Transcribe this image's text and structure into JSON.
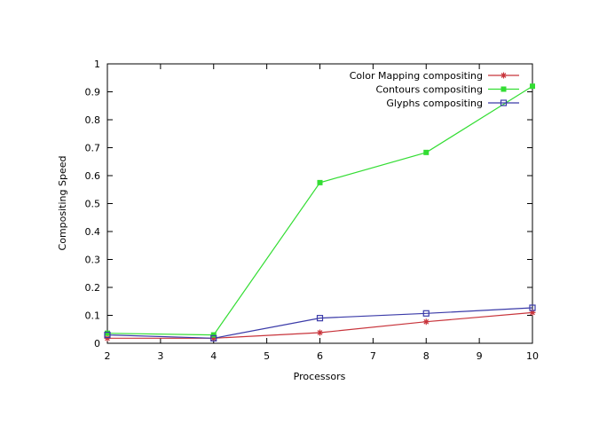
{
  "chart_data": {
    "type": "line",
    "xlabel": "Processors",
    "ylabel": "Compositing Speed",
    "xlim": [
      2,
      10
    ],
    "ylim": [
      0,
      1
    ],
    "x_ticks": [
      "2",
      "3",
      "4",
      "5",
      "6",
      "7",
      "8",
      "9",
      "10"
    ],
    "y_ticks": [
      "0",
      "0.1",
      "0.2",
      "0.3",
      "0.4",
      "0.5",
      "0.6",
      "0.7",
      "0.8",
      "0.9",
      "1"
    ],
    "grid": false,
    "legend_position": "top-right",
    "x": [
      2,
      4,
      6,
      8,
      10
    ],
    "series": [
      {
        "name": "Color Mapping compositing",
        "color": "#c8343b",
        "marker": "asterisk",
        "values": [
          0.018,
          0.018,
          0.038,
          0.077,
          0.11
        ]
      },
      {
        "name": "Contours compositing",
        "color": "#33dd33",
        "marker": "filled-square",
        "values": [
          0.036,
          0.03,
          0.575,
          0.683,
          0.92
        ]
      },
      {
        "name": "Glyphs compositing",
        "color": "#3a3aa8",
        "marker": "open-square",
        "values": [
          0.03,
          0.018,
          0.09,
          0.107,
          0.127
        ]
      }
    ]
  }
}
